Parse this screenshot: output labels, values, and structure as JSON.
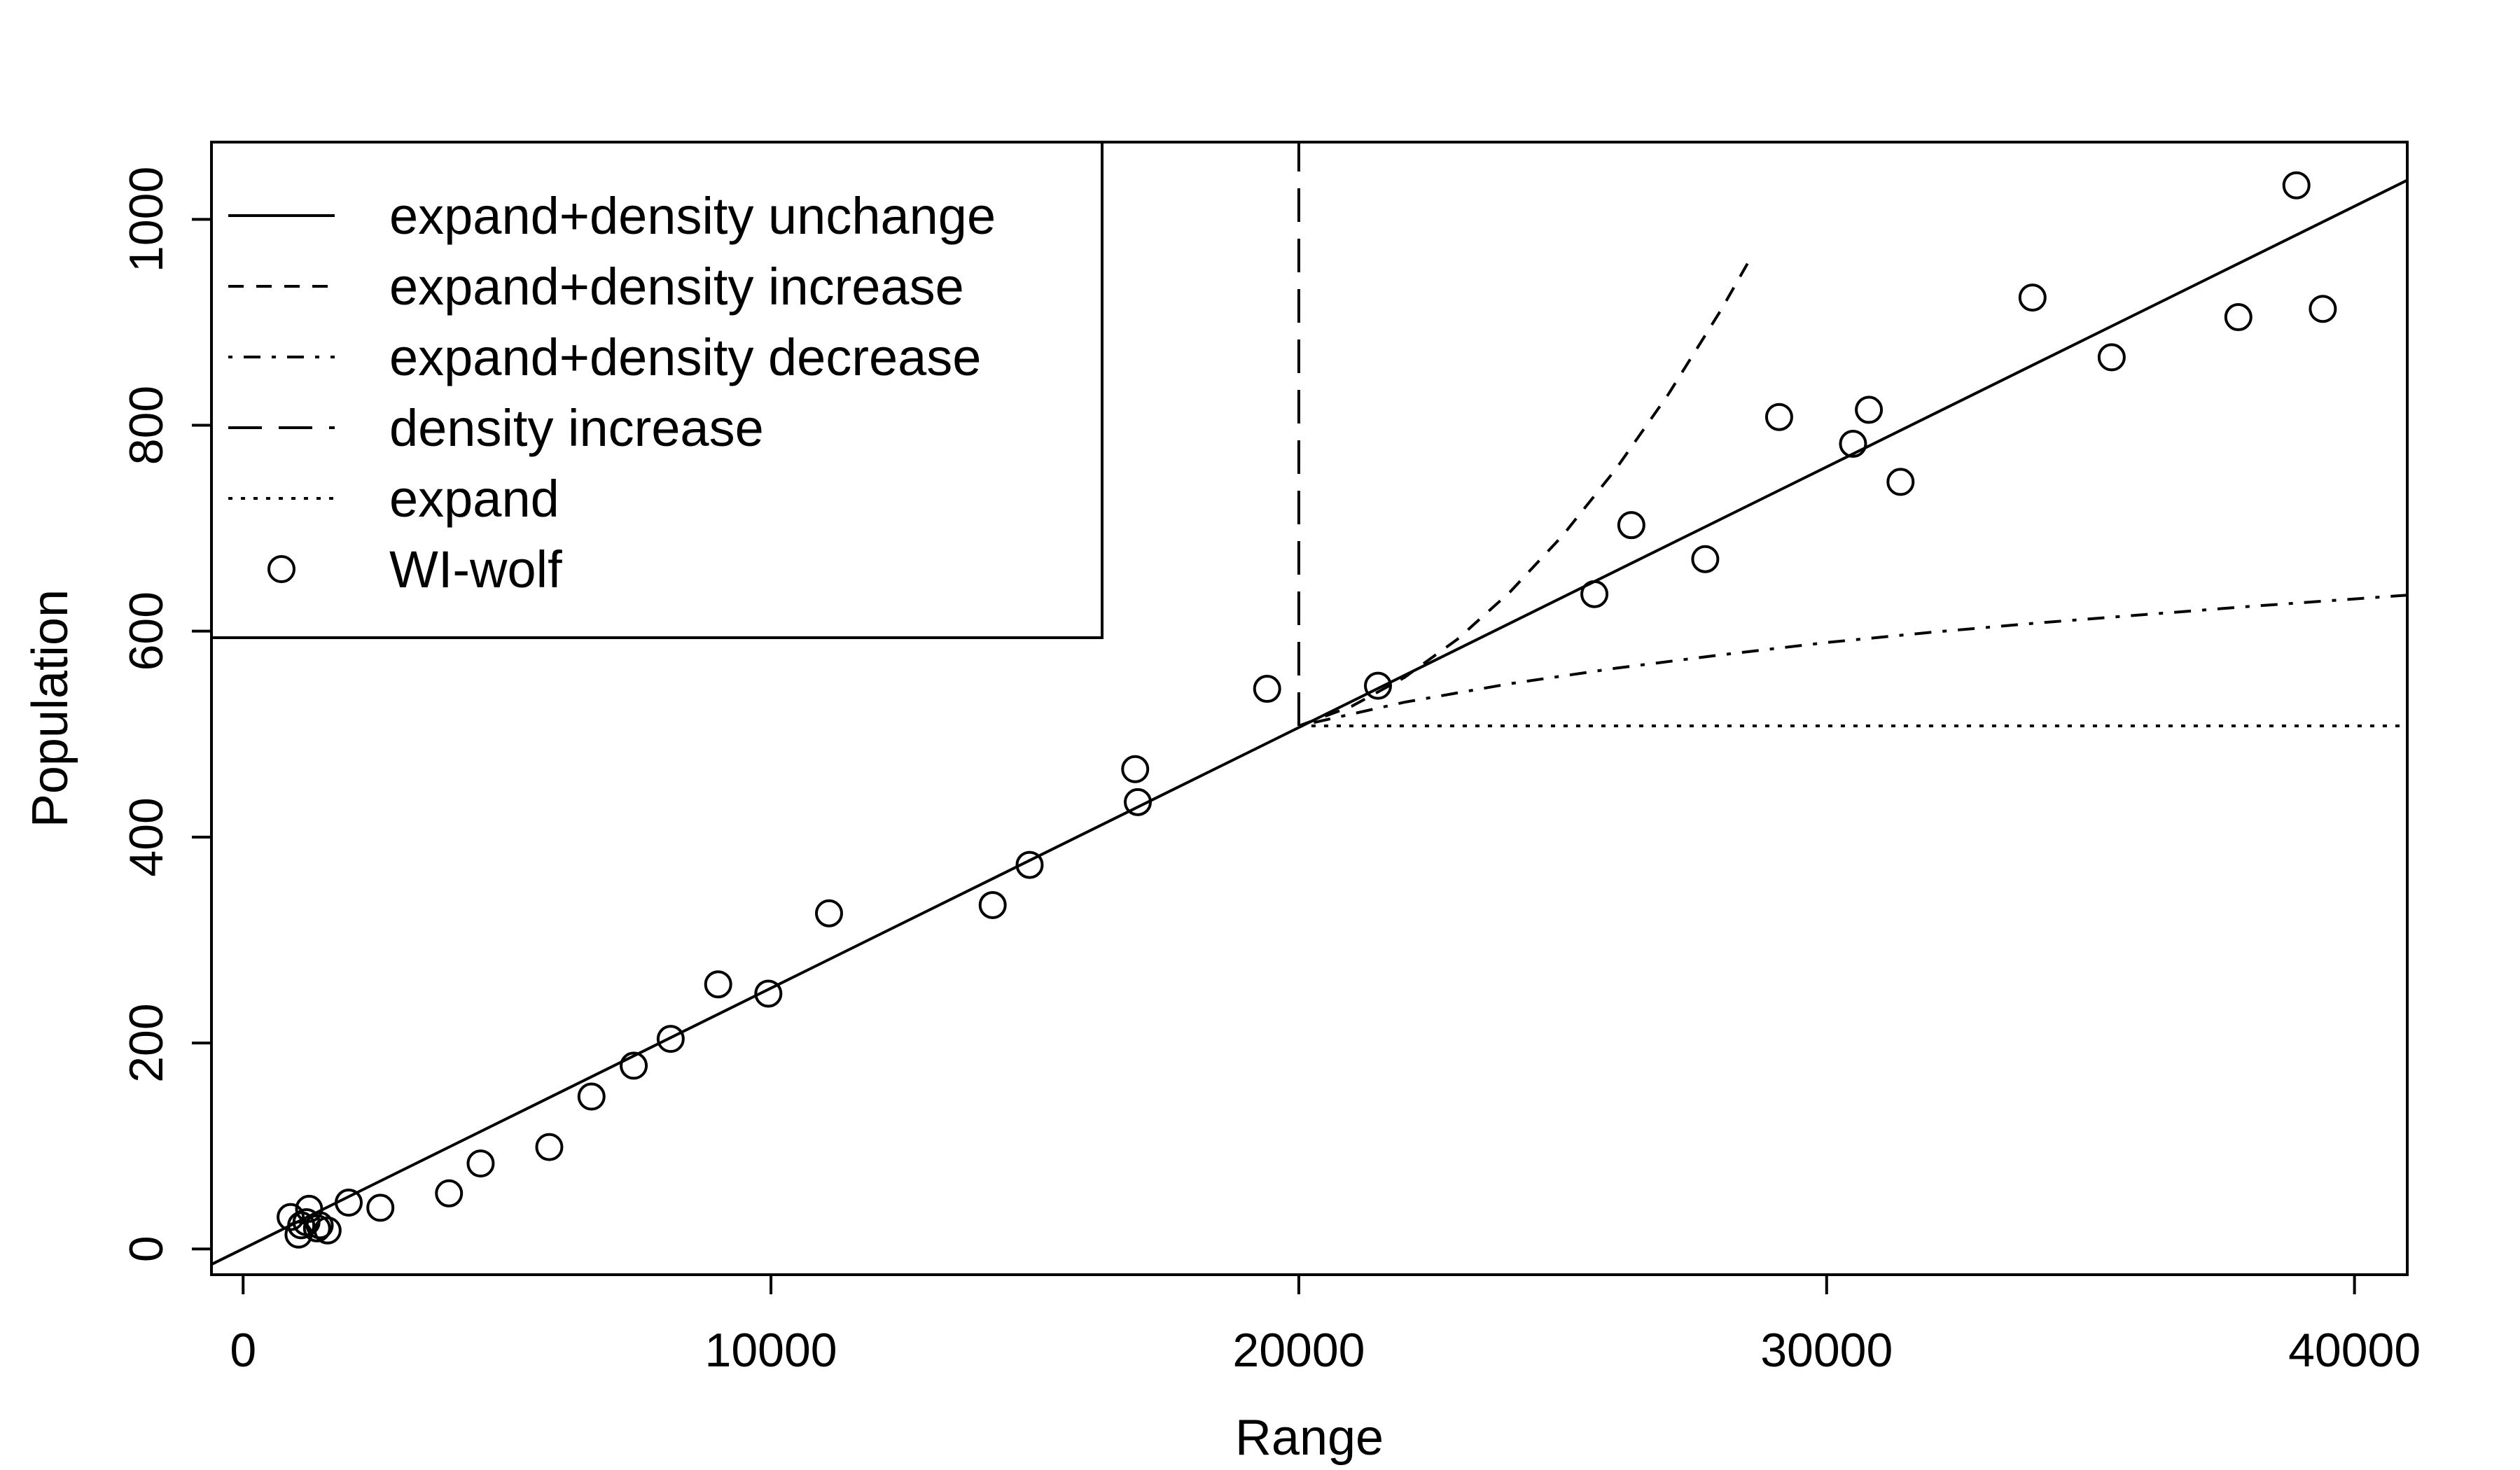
{
  "chart_data": {
    "type": "scatter",
    "title": "",
    "xlabel": "Range",
    "ylabel": "Population",
    "xlim": [
      -600,
      41000
    ],
    "ylim": [
      -25,
      1075
    ],
    "x_ticks": [
      0,
      10000,
      20000,
      30000,
      40000
    ],
    "y_ticks": [
      0,
      200,
      400,
      600,
      800,
      1000
    ],
    "x_tick_labels": [
      "0",
      "10000",
      "20000",
      "30000",
      "40000"
    ],
    "y_tick_labels": [
      "0",
      "200",
      "400",
      "600",
      "800",
      "1000"
    ],
    "grid": false,
    "legend_position": "top-left",
    "legend": [
      {
        "label": "expand+density unchange",
        "style": "solid"
      },
      {
        "label": "expand+density increase",
        "style": "dashed"
      },
      {
        "label": "expand+density decrease",
        "style": "dotdash"
      },
      {
        "label": "density increase",
        "style": "longdash"
      },
      {
        "label": "expand",
        "style": "dotted"
      },
      {
        "label": "WI-wolf",
        "style": "circle"
      }
    ],
    "series": [
      {
        "name": "expand+density unchange",
        "style": "solid",
        "x": [
          -600,
          41000
        ],
        "y": [
          -15,
          1038
        ]
      },
      {
        "name": "expand+density increase",
        "style": "dashed",
        "x": [
          20000,
          21000,
          22000,
          23000,
          24000,
          25000,
          26000,
          27000,
          28000,
          28500
        ],
        "y": [
          508,
          527,
          555,
          592,
          638,
          693,
          757,
          830,
          912,
          957
        ]
      },
      {
        "name": "expand+density decrease",
        "style": "dotdash",
        "x": [
          20000,
          22000,
          24000,
          26000,
          28000,
          30000,
          32000,
          34000,
          36000,
          38000,
          41000
        ],
        "y": [
          508,
          531,
          549,
          564,
          577,
          589,
          599,
          608,
          616,
          624,
          635
        ]
      },
      {
        "name": "density increase",
        "style": "longdash",
        "x": [
          20000,
          20000
        ],
        "y": [
          508,
          1075
        ]
      },
      {
        "name": "expand",
        "style": "dotted",
        "x": [
          20000,
          41000
        ],
        "y": [
          508,
          508
        ]
      },
      {
        "name": "WI-wolf",
        "style": "circle",
        "points": [
          [
            900,
            31
          ],
          [
            1050,
            14
          ],
          [
            1100,
            23
          ],
          [
            1200,
            26
          ],
          [
            1250,
            39
          ],
          [
            1400,
            20
          ],
          [
            1450,
            23
          ],
          [
            1600,
            18
          ],
          [
            2000,
            45
          ],
          [
            2600,
            40
          ],
          [
            3900,
            54
          ],
          [
            4500,
            83
          ],
          [
            5800,
            99
          ],
          [
            6600,
            148
          ],
          [
            7400,
            178
          ],
          [
            8100,
            204
          ],
          [
            9000,
            257
          ],
          [
            9950,
            248
          ],
          [
            11100,
            326
          ],
          [
            14200,
            334
          ],
          [
            14900,
            373
          ],
          [
            16900,
            466
          ],
          [
            16950,
            434
          ],
          [
            19400,
            544
          ],
          [
            21500,
            547
          ],
          [
            25600,
            636
          ],
          [
            26300,
            703
          ],
          [
            27700,
            670
          ],
          [
            29100,
            808
          ],
          [
            30500,
            782
          ],
          [
            30800,
            815
          ],
          [
            31400,
            745
          ],
          [
            33900,
            924
          ],
          [
            35400,
            866
          ],
          [
            37800,
            905
          ],
          [
            38900,
            1033
          ],
          [
            39400,
            913
          ]
        ]
      }
    ]
  }
}
